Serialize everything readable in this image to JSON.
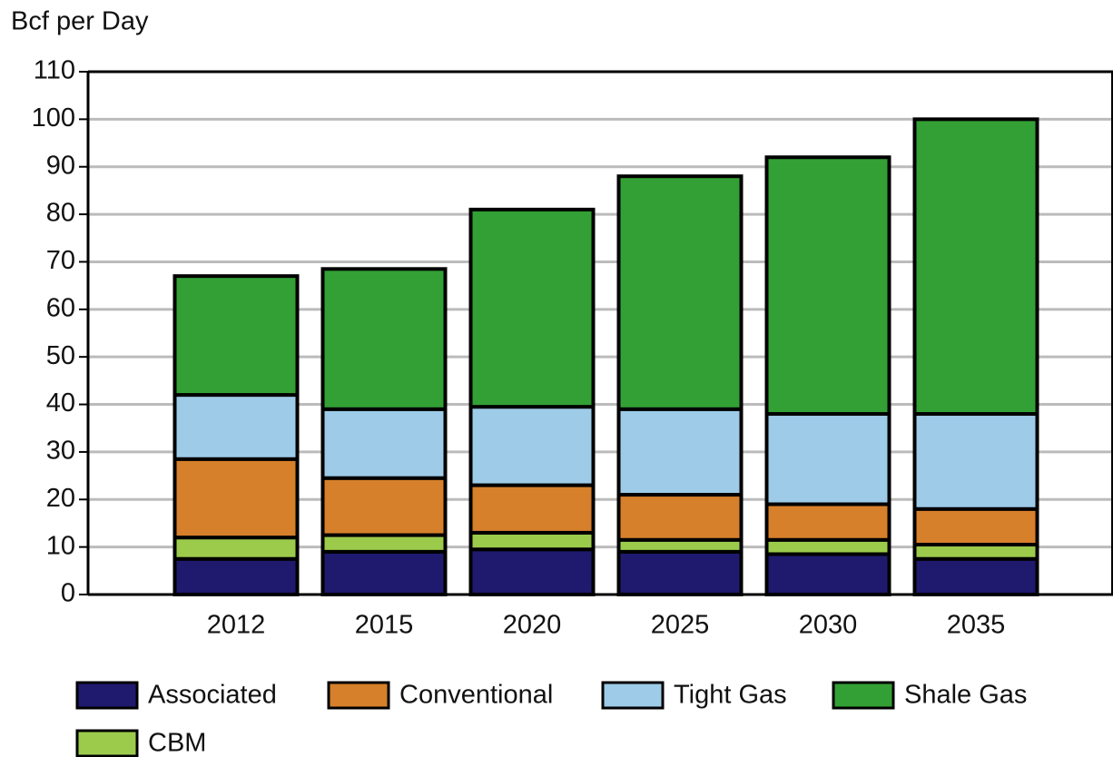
{
  "chart_data": {
    "type": "stacked_bar",
    "y_axis_label": "Bcf per Day",
    "categories": [
      "2012",
      "2015",
      "2020",
      "2025",
      "2030",
      "2035"
    ],
    "series": [
      {
        "name": "Associated",
        "color": "#1f1a6e",
        "values": [
          7.5,
          9,
          9.5,
          9,
          8.5,
          7.5
        ]
      },
      {
        "name": "CBM",
        "color": "#9ccb4c",
        "values": [
          4.5,
          3.5,
          3.5,
          2.5,
          3,
          3
        ]
      },
      {
        "name": "Conventional",
        "color": "#d6802b",
        "values": [
          16.5,
          12,
          10,
          9.5,
          7.5,
          7.5
        ]
      },
      {
        "name": "Tight Gas",
        "color": "#9dcbe8",
        "values": [
          13.5,
          14.5,
          16.5,
          18,
          19,
          20
        ]
      },
      {
        "name": "Shale Gas",
        "color": "#33a035",
        "values": [
          25,
          29.5,
          41.5,
          49,
          54,
          62
        ]
      }
    ],
    "legend_order": [
      "Associated",
      "Conventional",
      "Tight Gas",
      "Shale Gas",
      "CBM"
    ],
    "ylim": [
      0,
      110
    ],
    "yticks": [
      0,
      10,
      20,
      30,
      40,
      50,
      60,
      70,
      80,
      90,
      100,
      110
    ],
    "grid": true
  }
}
